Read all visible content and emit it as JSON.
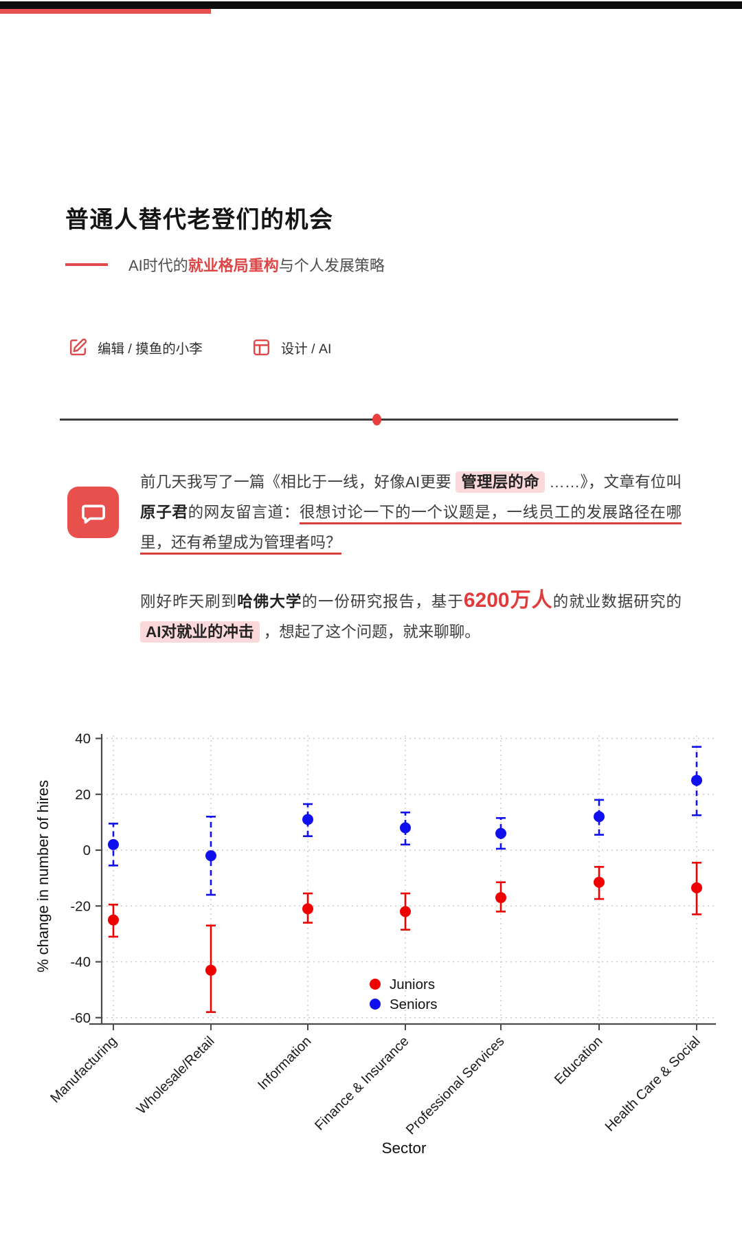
{
  "header": {
    "title": "普通人替代老登们的机会",
    "subtitle_prefix": "AI时代的",
    "subtitle_highlight": "就业格局重构",
    "subtitle_suffix": "与个人发展策略",
    "meta": [
      {
        "icon": "edit-icon",
        "label": "编辑 / 摸鱼的小李"
      },
      {
        "icon": "layout-grid-icon",
        "label": "设计 / AI"
      }
    ]
  },
  "quote": {
    "icon": "comment-bubble-icon",
    "p1": {
      "seg1": "前几天我写了一篇《相比于一线，好像AI更要 ",
      "seg2": "管理层的命",
      "seg3": " ……》，文章有位叫",
      "seg4": "原子君",
      "seg5": "的网友留言道：",
      "seg6": "很想讨论一下的一个议题是，一线员工的发展路径在哪里，还有希望成为管理者吗？"
    },
    "p2": {
      "seg1": "刚好昨天刷到",
      "seg2": "哈佛大学",
      "seg3": "的一份研究报告，基于",
      "seg4": "6200万人",
      "seg5": "的就业数据研究的 ",
      "seg6": "AI对就业的冲击",
      "seg7": " ，想起了这个问题，就来聊聊。"
    }
  },
  "colors": {
    "topbar_black": "#0d0d0d",
    "accent_red": "#e85152",
    "highlight_bg": "#fbd9db",
    "underline_red": "#d5403d",
    "chart_red": "#ee0000",
    "chart_blue": "#1010ee"
  },
  "chart_data": {
    "type": "scatter",
    "title": "",
    "xlabel": "Sector",
    "ylabel": "% change in number of hires",
    "ylim": [
      -60,
      40
    ],
    "yticks": [
      40,
      20,
      0,
      -20,
      -40,
      -60
    ],
    "grid": "dotted",
    "legend_position": "lower-center",
    "categories": [
      "Manufacturing",
      "Wholesale/Retail",
      "Information",
      "Finance & Insurance",
      "Professional Services",
      "Education",
      "Health Care & Social"
    ],
    "series": [
      {
        "name": "Juniors",
        "color": "#ee0000",
        "line": "solid",
        "values": [
          -25,
          -43,
          -21,
          -22,
          -17,
          -11.5,
          -13.5
        ],
        "err_low": [
          -31,
          -58,
          -26,
          -28.5,
          -22,
          -17.5,
          -23
        ],
        "err_high": [
          -19.5,
          -27,
          -15.5,
          -15.5,
          -11.5,
          -6,
          -4.5
        ]
      },
      {
        "name": "Seniors",
        "color": "#1010ee",
        "line": "dashed",
        "values": [
          2,
          -2,
          11,
          8,
          6,
          12,
          25
        ],
        "err_low": [
          -5.5,
          -16,
          5,
          2,
          0.5,
          5.5,
          12.5
        ],
        "err_high": [
          9.5,
          12,
          16.5,
          13.5,
          11.5,
          18,
          37
        ]
      }
    ]
  }
}
